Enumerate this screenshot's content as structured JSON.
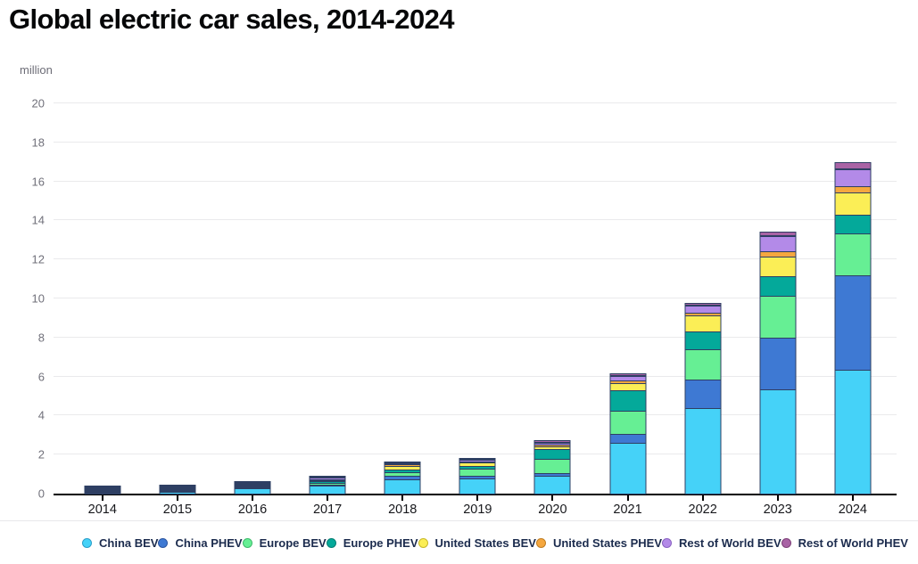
{
  "chart_data": {
    "type": "bar",
    "variant": "stacked",
    "title": "Global electric car sales, 2014-2024",
    "unit": "million",
    "xlabel": "",
    "ylabel": "million",
    "ylim": [
      0,
      20
    ],
    "yticks": [
      0,
      2,
      4,
      6,
      8,
      10,
      12,
      14,
      16,
      18,
      20
    ],
    "grid": true,
    "legend_position": "bottom",
    "segment_stroke": "#2e3f63",
    "categories": [
      "2014",
      "2015",
      "2016",
      "2017",
      "2018",
      "2019",
      "2020",
      "2021",
      "2022",
      "2023",
      "2024"
    ],
    "series": [
      {
        "name": "China BEV",
        "color": "#45d2f8",
        "ring": "#2b9fc9",
        "values": [
          0.04,
          0.15,
          0.3,
          0.47,
          0.78,
          0.8,
          0.95,
          2.65,
          4.45,
          5.4,
          6.4
        ]
      },
      {
        "name": "China PHEV",
        "color": "#3e79d3",
        "ring": "#2c56a0",
        "values": [
          0.03,
          0.06,
          0.08,
          0.11,
          0.24,
          0.2,
          0.18,
          0.5,
          1.5,
          2.7,
          4.9
        ]
      },
      {
        "name": "Europe BEV",
        "color": "#66ef94",
        "ring": "#3fba6c",
        "values": [
          0.06,
          0.09,
          0.1,
          0.15,
          0.22,
          0.4,
          0.76,
          1.22,
          1.6,
          2.2,
          2.2
        ]
      },
      {
        "name": "Europe PHEV",
        "color": "#04a99a",
        "ring": "#037e73",
        "values": [
          0.04,
          0.08,
          0.1,
          0.14,
          0.19,
          0.16,
          0.56,
          1.1,
          0.98,
          1.05,
          1.0
        ]
      },
      {
        "name": "United States BEV",
        "color": "#fbee56",
        "ring": "#c9b92a",
        "values": [
          0.06,
          0.06,
          0.1,
          0.1,
          0.24,
          0.24,
          0.16,
          0.41,
          0.85,
          1.05,
          1.2
        ]
      },
      {
        "name": "United States PHEV",
        "color": "#f5a73f",
        "ring": "#c07d22",
        "values": [
          0.06,
          0.05,
          0.08,
          0.09,
          0.14,
          0.09,
          0.12,
          0.2,
          0.18,
          0.3,
          0.35
        ]
      },
      {
        "name": "Rest of World BEV",
        "color": "#b38ae8",
        "ring": "#8a63c2",
        "values": [
          0.02,
          0.03,
          0.05,
          0.12,
          0.11,
          0.12,
          0.14,
          0.26,
          0.4,
          0.8,
          0.9
        ]
      },
      {
        "name": "Rest of World PHEV",
        "color": "#a963a5",
        "ring": "#7e4179",
        "values": [
          0.01,
          0.01,
          0.02,
          0.05,
          0.08,
          0.09,
          0.12,
          0.15,
          0.15,
          0.22,
          0.38
        ]
      }
    ]
  }
}
